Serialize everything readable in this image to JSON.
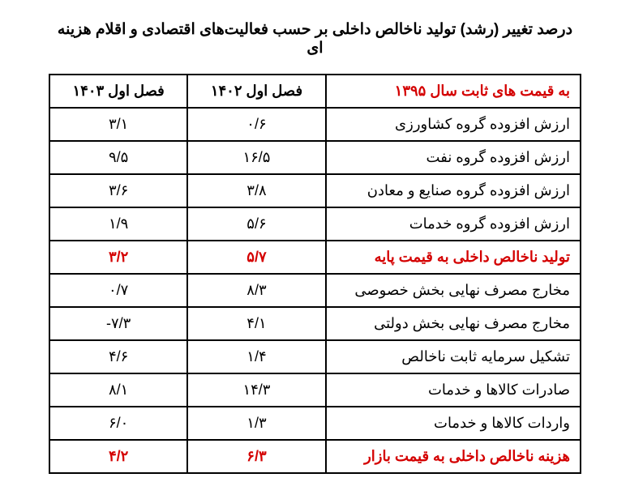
{
  "title": "درصد تغییر (رشد) تولید ناخالص داخلی بر حسب فعالیت‌های اقتصادی و اقلام هزینه ای",
  "table": {
    "columns": [
      {
        "label": "به قیمت های ثابت سال ۱۳۹۵",
        "is_label": true,
        "red": true
      },
      {
        "label": "فصل اول ۱۴۰۲",
        "is_label": false
      },
      {
        "label": "فصل اول ۱۴۰۳",
        "is_label": false
      }
    ],
    "rows": [
      {
        "label": "ارزش افزوده گروه کشاورزی",
        "v1": "۰/۶",
        "v2": "۳/۱",
        "red": false
      },
      {
        "label": "ارزش افزوده گروه نفت",
        "v1": "۱۶/۵",
        "v2": "۹/۵",
        "red": false
      },
      {
        "label": "ارزش افزوده گروه صنایع و معادن",
        "v1": "۳/۸",
        "v2": "۳/۶",
        "red": false
      },
      {
        "label": "ارزش افزوده گروه خدمات",
        "v1": "۵/۶",
        "v2": "۱/۹",
        "red": false
      },
      {
        "label": "تولید ناخالص داخلی به قیمت پایه",
        "v1": "۵/۷",
        "v2": "۳/۲",
        "red": true
      },
      {
        "label": "مخارج مصرف نهایی بخش خصوصی",
        "v1": "۸/۳",
        "v2": "۰/۷",
        "red": false
      },
      {
        "label": "مخارج مصرف نهایی بخش دولتی",
        "v1": "۴/۱",
        "v2": "-۷/۳",
        "red": false
      },
      {
        "label": "تشکیل سرمایه ثابت ناخالص",
        "v1": "۱/۴",
        "v2": "۴/۶",
        "red": false
      },
      {
        "label": "صادرات کالاها و خدمات",
        "v1": "۱۴/۳",
        "v2": "۸/۱",
        "red": false
      },
      {
        "label": "واردات کالاها و خدمات",
        "v1": "۱/۳",
        "v2": "۶/۰",
        "red": false
      },
      {
        "label": "هزینه ناخالص داخلی به قیمت بازار",
        "v1": "۶/۳",
        "v2": "۴/۲",
        "red": true
      }
    ],
    "header_color_red": "#d40000",
    "text_color": "#000000",
    "border_color": "#000000",
    "background_color": "#ffffff",
    "title_fontsize": 19,
    "cell_fontsize": 18
  }
}
